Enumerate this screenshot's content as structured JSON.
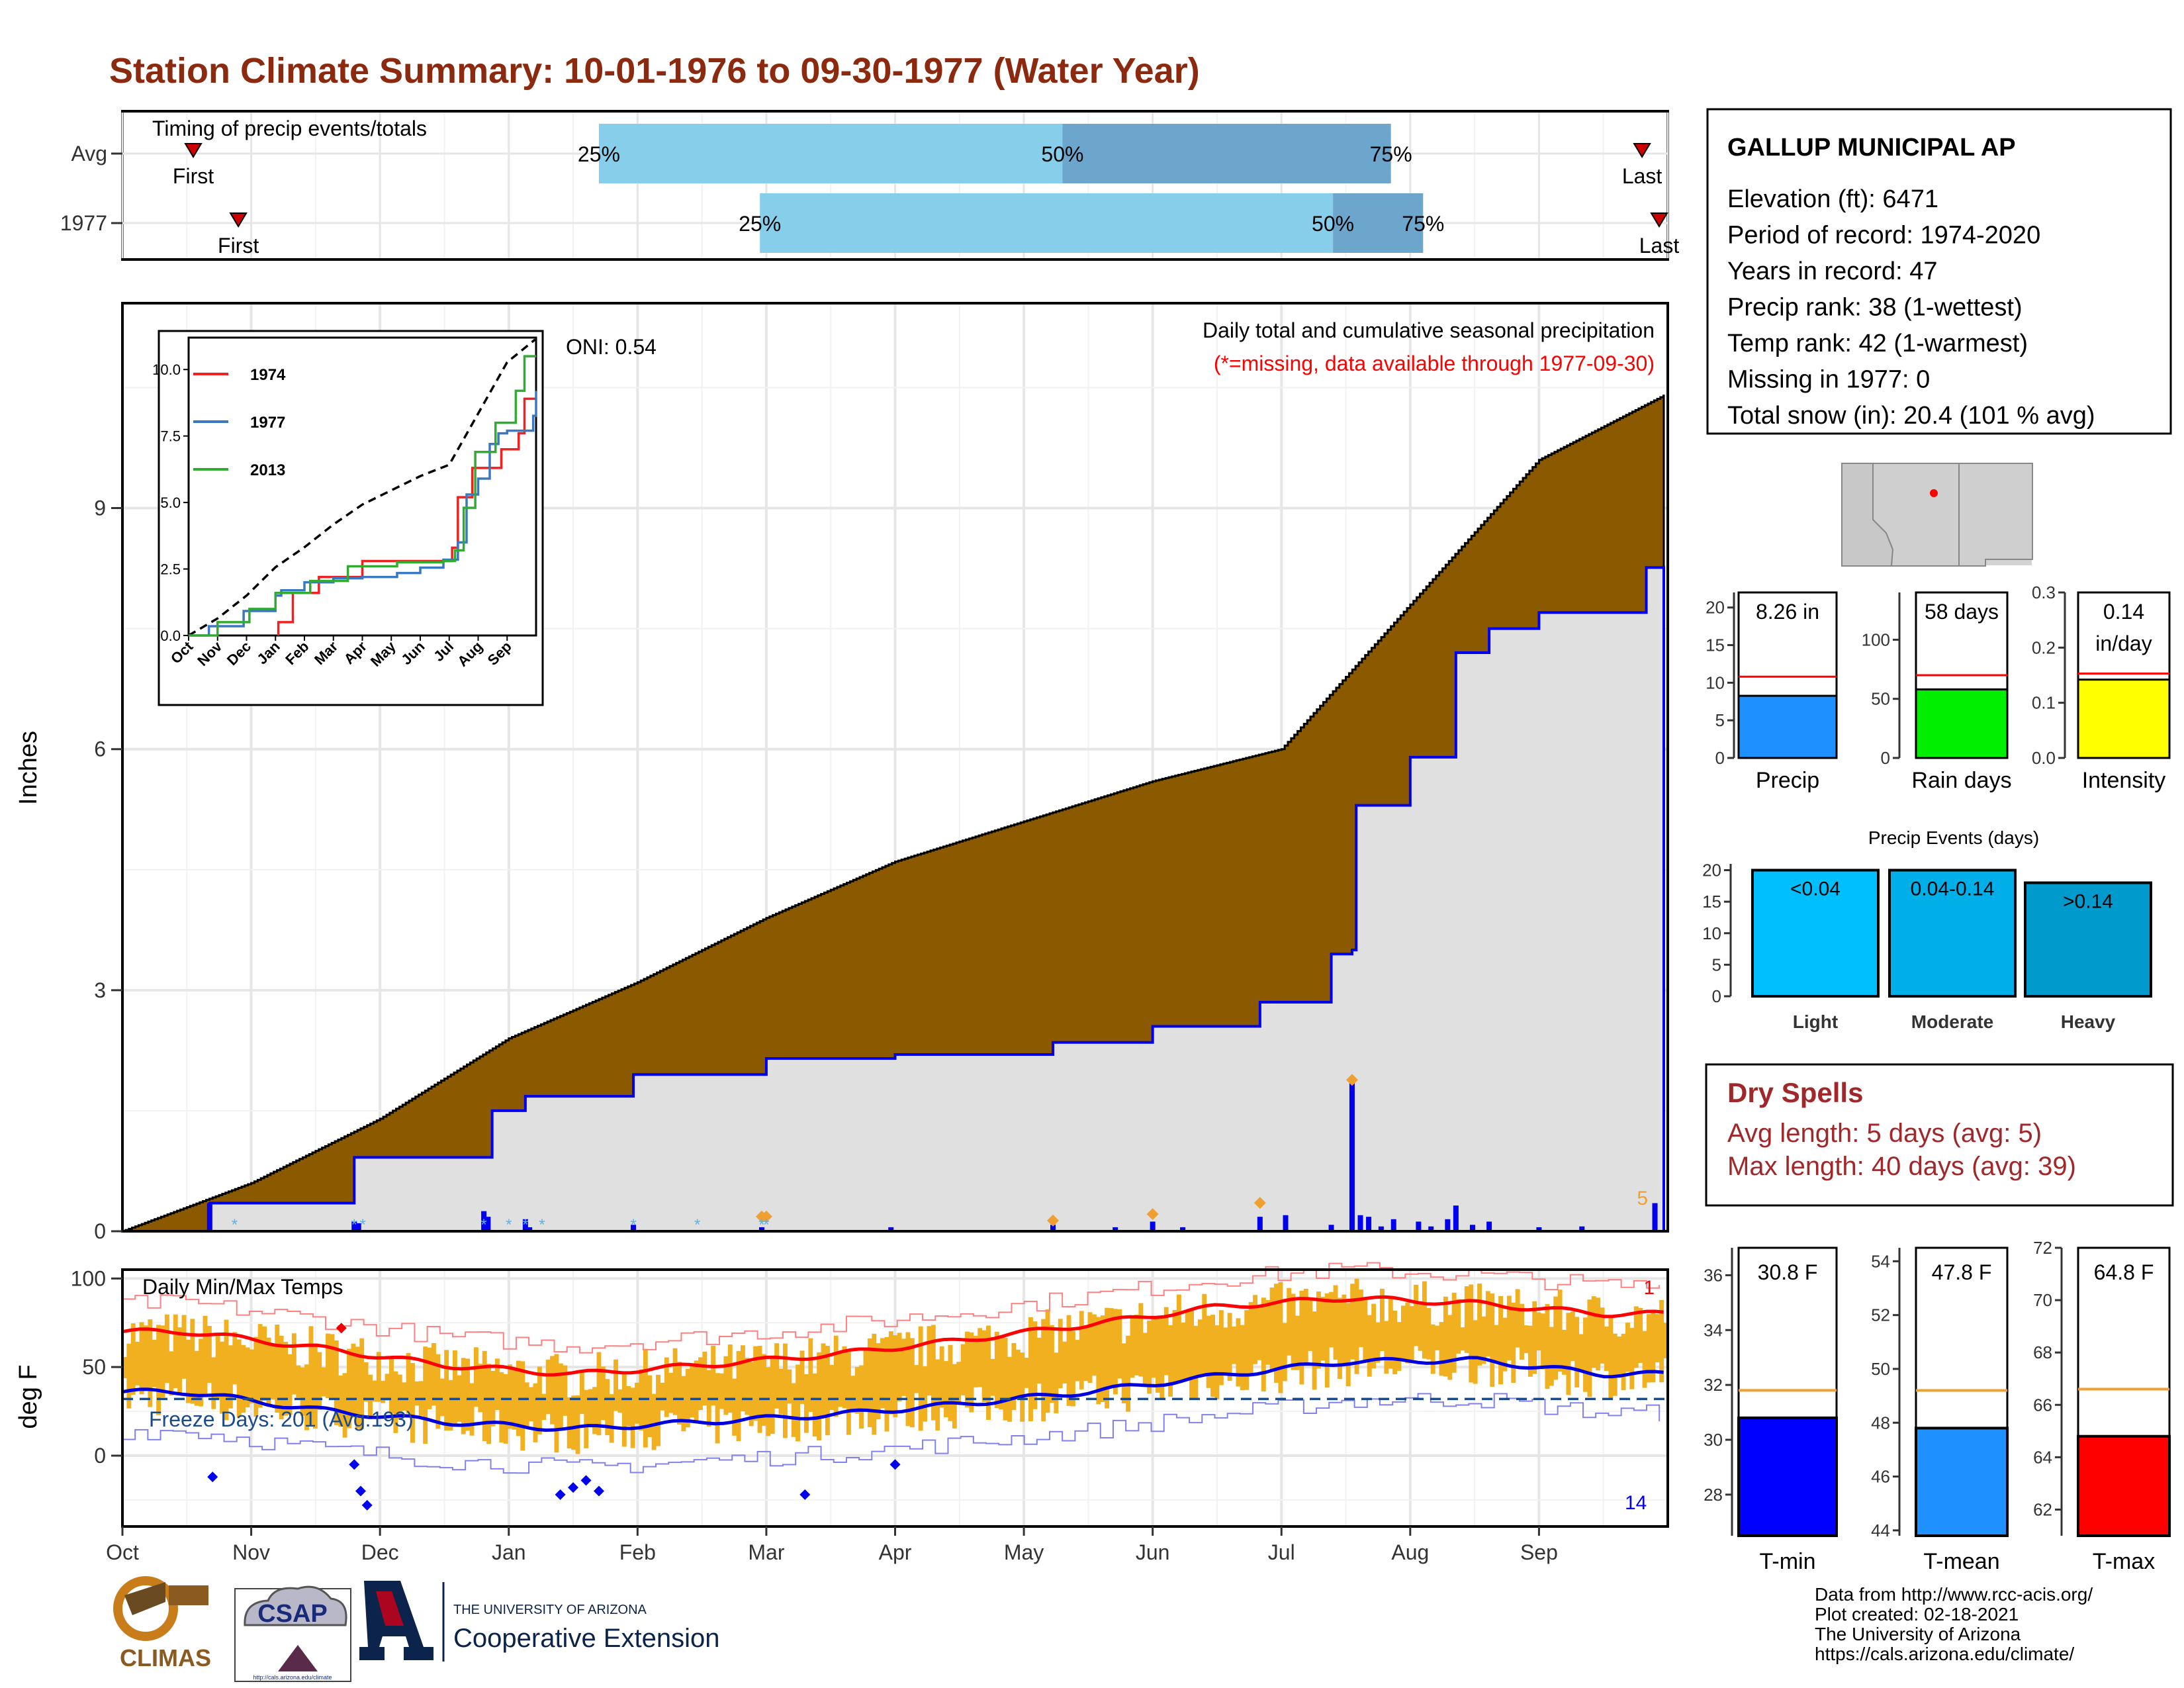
{
  "title": "Station Climate Summary: 10-01-1976 to 09-30-1977 (Water Year)",
  "colors": {
    "title": "#8b2a0e",
    "brown": "#8b5a00",
    "grey_fill": "#e0e0e0",
    "blue": "#0000ee",
    "light_blue": "#87ceeb",
    "steel_blue": "#6ca6cd",
    "gold": "#f0b020",
    "red": "#ff0000",
    "orange": "#f0a030",
    "dark_red": "#a0282a"
  },
  "timing": {
    "label": "Timing of precip events/totals",
    "rows": [
      {
        "name": "Avg",
        "first_label": "First",
        "last_label": "Last",
        "first_month": 0.55,
        "last_month": 11.8,
        "p25_month": 3.7,
        "p50_month": 7.3,
        "p75_month": 9.85,
        "p25_label": "25%",
        "p50_label": "50%",
        "p75_label": "75%"
      },
      {
        "name": "1977",
        "first_label": "First",
        "last_label": "Last",
        "first_month": 0.9,
        "last_month": 11.97,
        "p25_month": 4.95,
        "p50_month": 9.4,
        "p75_month": 10.1,
        "p25_label": "25%",
        "p50_label": "50%",
        "p75_label": "75%"
      }
    ]
  },
  "precip": {
    "ylabel": "Inches",
    "subtitle": "Daily total and cumulative seasonal precipitation",
    "missing_note": "(*=missing, data available through 1977-09-30)",
    "oni": "ONI: 0.54",
    "right_label": "5",
    "yticks": [
      "0",
      "3",
      "6",
      "9"
    ]
  },
  "inset": {
    "yticks": [
      "0.0",
      "2.5",
      "5.0",
      "7.5",
      "10.0"
    ],
    "months": [
      "Oct",
      "Nov",
      "Dec",
      "Jan",
      "Feb",
      "Mar",
      "Apr",
      "May",
      "Jun",
      "Jul",
      "Aug",
      "Sep"
    ],
    "legend": [
      {
        "name": "1974",
        "color": "#ee2222"
      },
      {
        "name": "1977",
        "color": "#3a78c0"
      },
      {
        "name": "2013",
        "color": "#33aa33"
      }
    ]
  },
  "temps": {
    "label": "Daily Min/Max Temps",
    "ylabel": "deg F",
    "freeze": "Freeze Days: 201 (Avg:193)",
    "right_top": "1",
    "right_bottom": "14",
    "yticks": [
      "0",
      "50",
      "100"
    ]
  },
  "x_months": [
    "Oct",
    "Nov",
    "Dec",
    "Jan",
    "Feb",
    "Mar",
    "Apr",
    "May",
    "Jun",
    "Jul",
    "Aug",
    "Sep"
  ],
  "station": {
    "name": "GALLUP MUNICIPAL AP",
    "lines": [
      "Elevation (ft): 6471",
      "Period of record: 1974-2020",
      "Years in record: 47",
      "Precip rank: 38 (1-wettest)",
      "Temp rank: 42 (1-warmest)",
      "Missing in 1977: 0",
      "Total snow (in): 20.4 (101 % avg)"
    ]
  },
  "bars_top": [
    {
      "name": "Precip",
      "value": 8.26,
      "avg": 10.8,
      "ymax": 22,
      "ticks": [
        "0",
        "5",
        "10",
        "15",
        "20"
      ],
      "tick_vals": [
        0,
        5,
        10,
        15,
        20
      ],
      "box_text": [
        "8.26 in"
      ],
      "color": "#1e90ff"
    },
    {
      "name": "Rain days",
      "value": 58,
      "avg": 70,
      "ymax": 140,
      "ticks": [
        "0",
        "50",
        "100"
      ],
      "tick_vals": [
        0,
        50,
        100
      ],
      "box_text": [
        "58 days"
      ],
      "color": "#00ee00"
    },
    {
      "name": "Intensity",
      "value": 0.142,
      "avg": 0.153,
      "ymax": 0.3,
      "ticks": [
        "0.0",
        "0.1",
        "0.2",
        "0.3"
      ],
      "tick_vals": [
        0,
        0.1,
        0.2,
        0.3
      ],
      "box_text": [
        "0.14",
        "in/day"
      ],
      "color": "#ffff00"
    }
  ],
  "events": {
    "title": "Precip Events (days)",
    "ticks": [
      "0",
      "5",
      "10",
      "15",
      "20"
    ],
    "bars": [
      {
        "name": "Light",
        "value": 20,
        "label": "<0.04",
        "color": "#00bfff"
      },
      {
        "name": "Moderate",
        "value": 20,
        "label": "0.04-0.14",
        "color": "#00aee8"
      },
      {
        "name": "Heavy",
        "value": 18,
        "label": ">0.14",
        "color": "#009acd"
      }
    ]
  },
  "dry": {
    "title": "Dry Spells",
    "line1": "Avg length: 5 days (avg: 5)",
    "line2": "Max length: 40 days (avg: 39)"
  },
  "bars_temp": [
    {
      "name": "T-min",
      "value": 30.8,
      "avg": 31.8,
      "ymin": 26.5,
      "ymax": 37,
      "ticks": [
        "28",
        "30",
        "32",
        "34",
        "36"
      ],
      "tick_vals": [
        28,
        30,
        32,
        34,
        36
      ],
      "box_text": "30.8 F",
      "color": "#0000ff"
    },
    {
      "name": "T-mean",
      "value": 47.8,
      "avg": 49.2,
      "ymin": 43.8,
      "ymax": 54.5,
      "ticks": [
        "44",
        "46",
        "48",
        "50",
        "52",
        "54"
      ],
      "tick_vals": [
        44,
        46,
        48,
        50,
        52,
        54
      ],
      "box_text": "47.8 F",
      "color": "#1e90ff"
    },
    {
      "name": "T-max",
      "value": 64.8,
      "avg": 66.6,
      "ymin": 61,
      "ymax": 72,
      "ticks": [
        "62",
        "64",
        "66",
        "68",
        "70",
        "72"
      ],
      "tick_vals": [
        62,
        64,
        66,
        68,
        70,
        72
      ],
      "box_text": "64.8 F",
      "color": "#ff0000"
    }
  ],
  "footer": {
    "lines": [
      "Data from http://www.rcc-acis.org/",
      "Plot created: 02-18-2021",
      "The University of Arizona",
      "https://cals.arizona.edu/climate/"
    ],
    "climas": "CLIMAS",
    "csap": "CSAP",
    "csap_url": "http://cals.arizona.edu/climate",
    "ua_small": "THE UNIVERSITY OF ARIZONA",
    "ua_big": "Cooperative Extension"
  },
  "chart_data": [
    {
      "type": "bar",
      "title": "Timing of precip events/totals",
      "categories": [
        "Avg",
        "1977"
      ],
      "series": [
        {
          "name": "25%",
          "values": [
            3.7,
            4.95
          ]
        },
        {
          "name": "50%",
          "values": [
            7.3,
            9.4
          ]
        },
        {
          "name": "75%",
          "values": [
            9.85,
            10.1
          ]
        }
      ]
    },
    {
      "type": "area",
      "title": "Daily total and cumulative seasonal precipitation",
      "ylabel": "Inches",
      "ylim": [
        0,
        11.5
      ],
      "series": [
        {
          "name": "avg_cumulative",
          "x": [
            "Oct 1",
            "Nov 1",
            "Dec 1",
            "Jan 1",
            "Feb 1",
            "Mar 1",
            "Apr 1",
            "May 1",
            "Jun 1",
            "Jul 1",
            "Aug 1",
            "Sep 1",
            "Sep 30"
          ],
          "values": [
            0,
            0.6,
            1.4,
            2.4,
            3.1,
            3.9,
            4.6,
            5.1,
            5.6,
            6.0,
            7.8,
            9.6,
            10.4
          ]
        },
        {
          "name": "1977_cumulative",
          "x": [
            "Oct 1",
            "Oct 22",
            "Nov 25",
            "Dec 28",
            "Jan 5",
            "Jan 31",
            "Mar 1",
            "Apr 1",
            "May 8",
            "Jun 1",
            "Jun 26",
            "Jul 13",
            "Jul 18",
            "Jul 19",
            "Aug 1",
            "Aug 12",
            "Aug 20",
            "Sep 1",
            "Sep 26",
            "Sep 30"
          ],
          "values": [
            0,
            0.35,
            0.92,
            1.5,
            1.68,
            1.95,
            2.15,
            2.2,
            2.35,
            2.55,
            2.85,
            3.45,
            3.5,
            5.3,
            5.9,
            7.2,
            7.5,
            7.7,
            8.26,
            8.26
          ]
        }
      ]
    },
    {
      "type": "line",
      "title": "Daily Min/Max Temps",
      "ylabel": "deg F",
      "series": [
        {
          "name": "avg_max",
          "x": [
            "Oct",
            "Nov",
            "Dec",
            "Jan",
            "Feb",
            "Mar",
            "Apr",
            "May",
            "Jun",
            "Jul",
            "Aug",
            "Sep"
          ],
          "values": [
            70,
            61,
            51,
            46,
            51,
            57,
            65,
            74,
            84,
            89,
            86,
            80
          ]
        },
        {
          "name": "avg_min",
          "x": [
            "Oct",
            "Nov",
            "Dec",
            "Jan",
            "Feb",
            "Mar",
            "Apr",
            "May",
            "Jun",
            "Jul",
            "Aug",
            "Sep"
          ],
          "values": [
            36,
            26,
            19,
            15,
            19,
            23,
            29,
            36,
            45,
            53,
            54,
            46
          ]
        }
      ]
    }
  ]
}
